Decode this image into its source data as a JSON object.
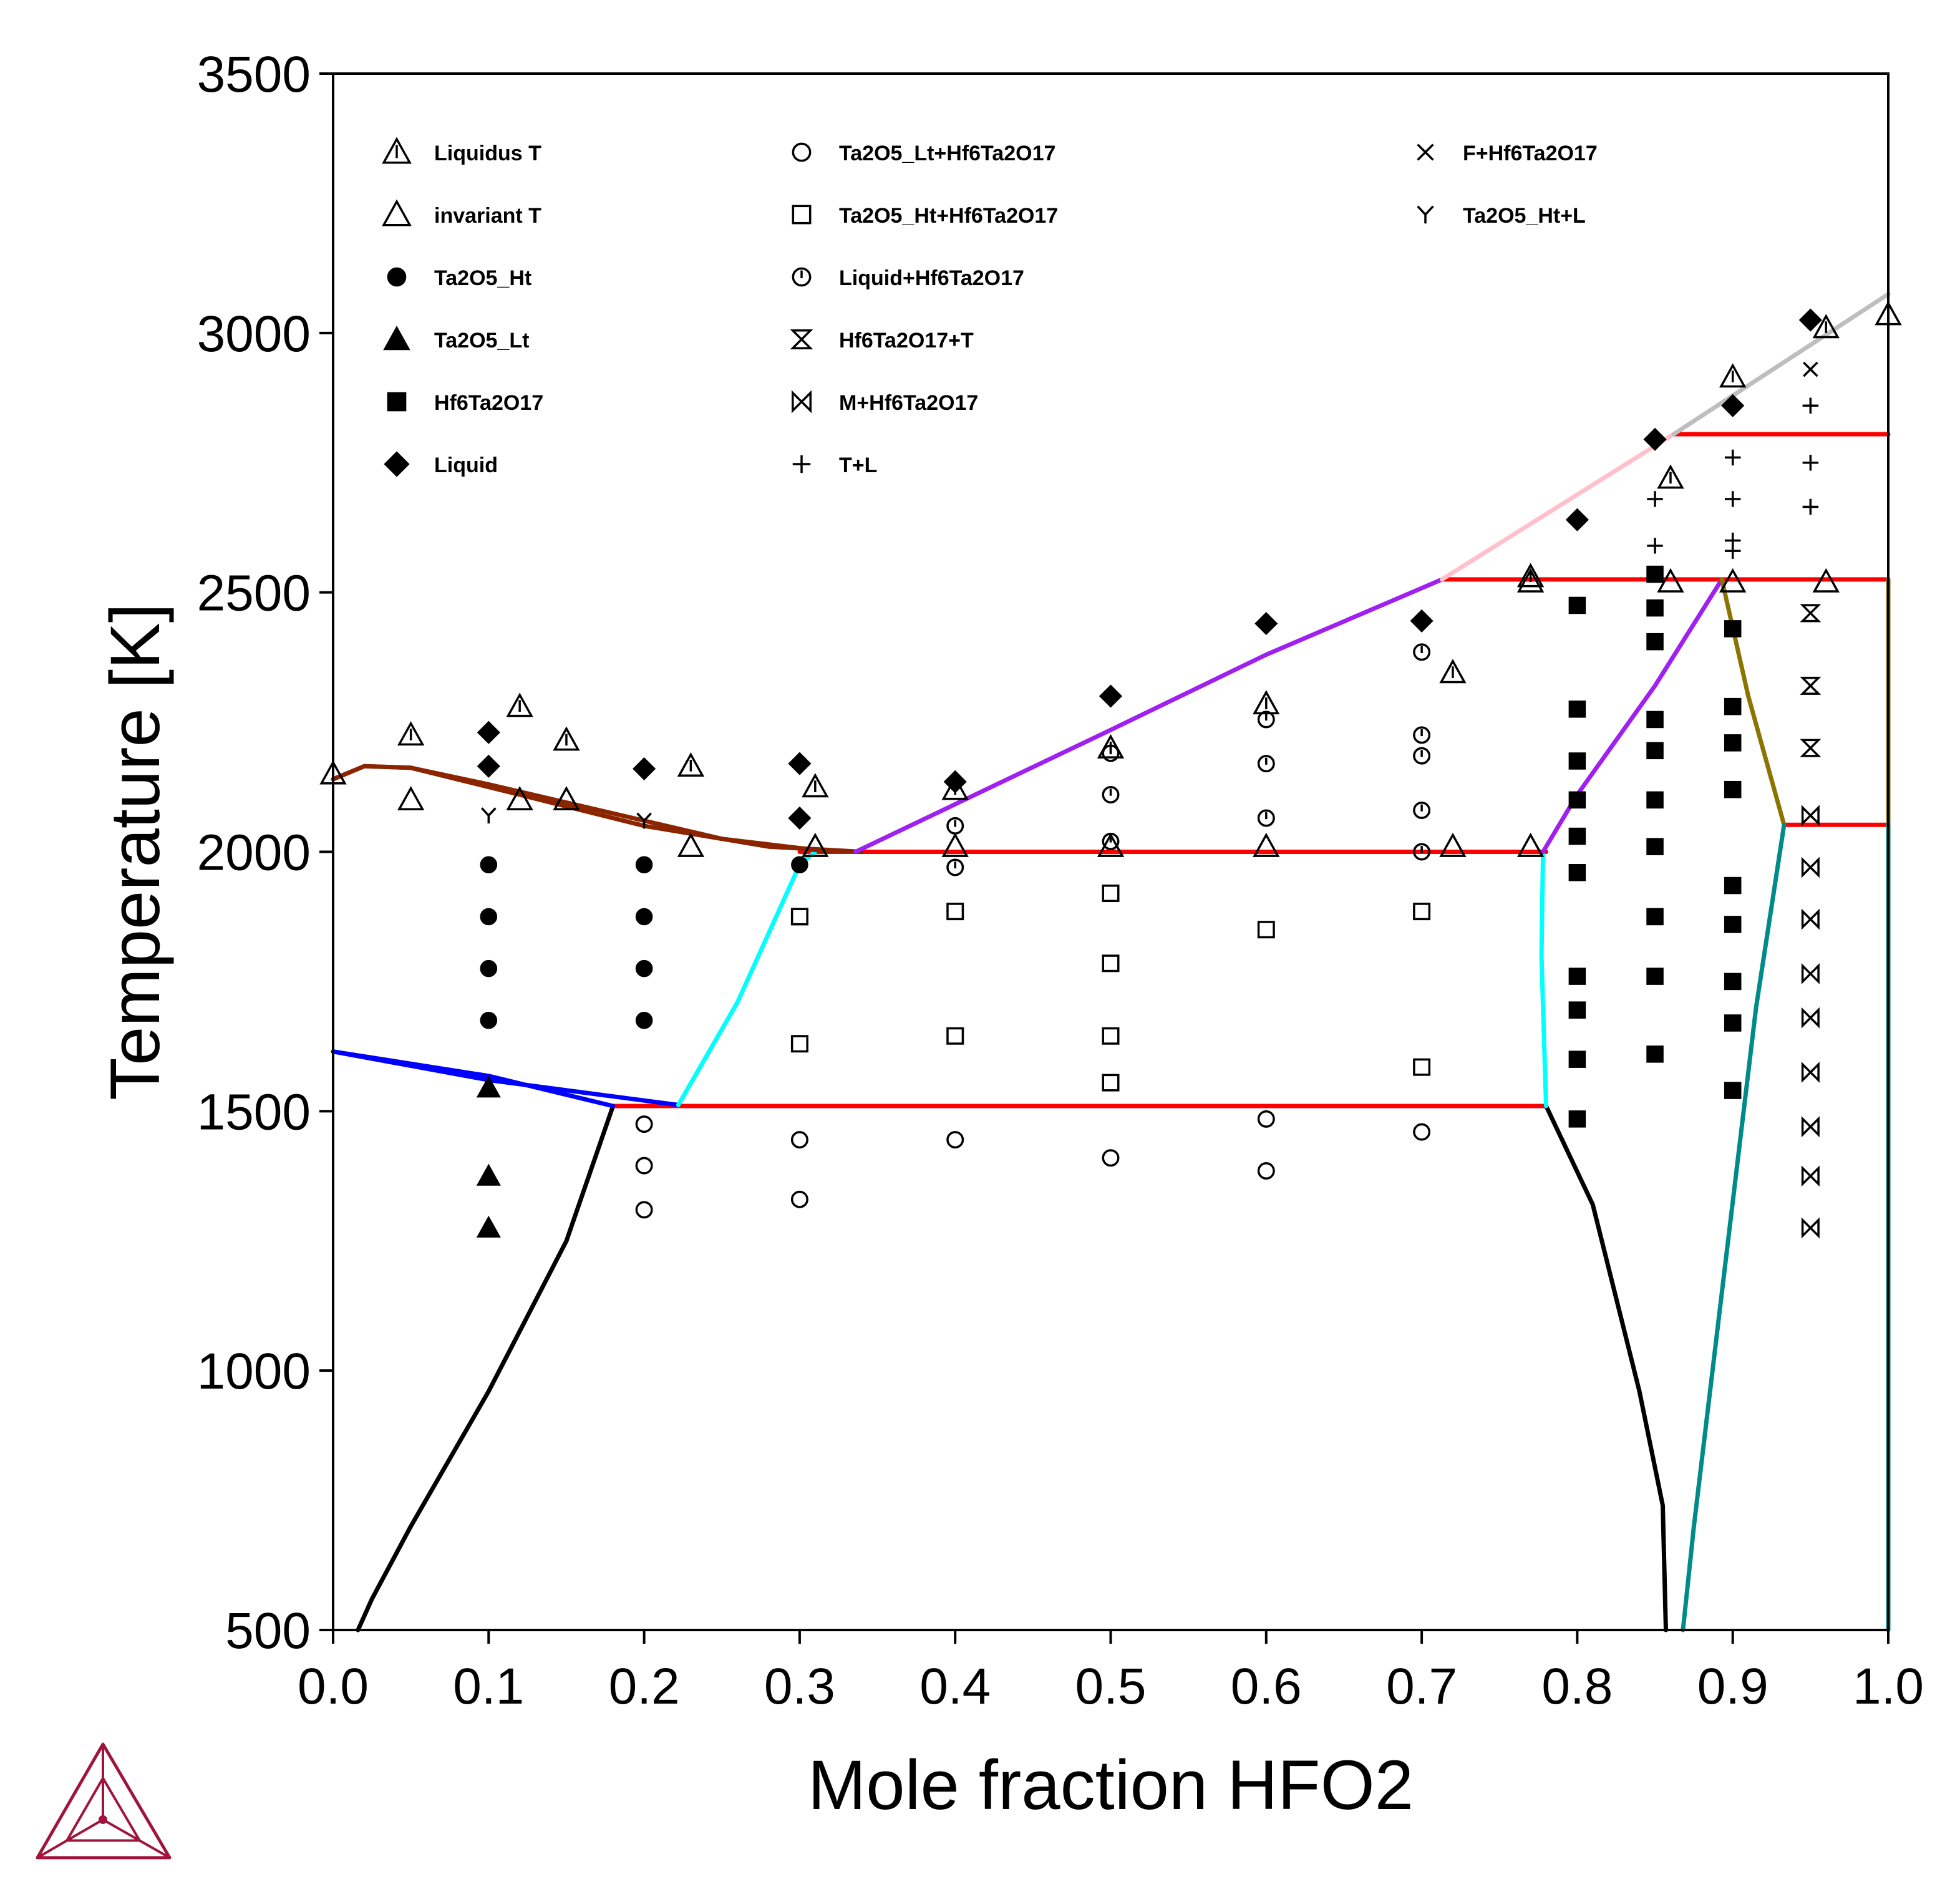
{
  "chart_data": {
    "type": "scatter",
    "title": "",
    "xlabel": "Mole fraction HFO2",
    "ylabel": "Temperature [K]",
    "xlim": [
      0.0,
      1.0
    ],
    "ylim": [
      500,
      3500
    ],
    "x_ticks": [
      "0.0",
      "0.1",
      "0.2",
      "0.3",
      "0.4",
      "0.5",
      "0.6",
      "0.7",
      "0.8",
      "0.9",
      "1.0"
    ],
    "y_ticks": [
      "500",
      "1000",
      "1500",
      "2000",
      "2500",
      "3000",
      "3500"
    ],
    "grid": false,
    "legend_position": "top-left inside, three columns",
    "markers": [
      {
        "name": "Liquidus T",
        "marker": "tri-bar",
        "points": [
          [
            0.0,
            2150
          ],
          [
            0.05,
            2225
          ],
          [
            0.12,
            2280
          ],
          [
            0.15,
            2215
          ],
          [
            0.23,
            2165
          ],
          [
            0.31,
            2125
          ],
          [
            0.4,
            2120
          ],
          [
            0.5,
            2200
          ],
          [
            0.6,
            2285
          ],
          [
            0.72,
            2345
          ],
          [
            0.77,
            2530
          ],
          [
            0.86,
            2720
          ],
          [
            0.9,
            2915
          ],
          [
            0.96,
            3010
          ]
        ]
      },
      {
        "name": "invariant T",
        "marker": "tri-open",
        "points": [
          [
            0.05,
            2100
          ],
          [
            0.12,
            2100
          ],
          [
            0.15,
            2100
          ],
          [
            0.23,
            2010
          ],
          [
            0.31,
            2010
          ],
          [
            0.4,
            2010
          ],
          [
            0.5,
            2010
          ],
          [
            0.6,
            2010
          ],
          [
            0.72,
            2010
          ],
          [
            0.77,
            2010
          ],
          [
            0.77,
            2520
          ],
          [
            0.86,
            2520
          ],
          [
            0.9,
            2520
          ],
          [
            0.96,
            2520
          ],
          [
            1.0,
            3035
          ]
        ]
      },
      {
        "name": "Ta2O5_Ht",
        "marker": "circle-filled",
        "points": [
          [
            0.1,
            1975
          ],
          [
            0.1,
            1875
          ],
          [
            0.1,
            1775
          ],
          [
            0.1,
            1675
          ],
          [
            0.2,
            1975
          ],
          [
            0.2,
            1875
          ],
          [
            0.2,
            1775
          ],
          [
            0.2,
            1675
          ],
          [
            0.3,
            1975
          ]
        ]
      },
      {
        "name": "Ta2O5_Lt",
        "marker": "tri-filled",
        "points": [
          [
            0.1,
            1545
          ],
          [
            0.1,
            1375
          ],
          [
            0.1,
            1275
          ]
        ]
      },
      {
        "name": "Hf6Ta2O17",
        "marker": "square-filled",
        "points": [
          [
            0.8,
            2475
          ],
          [
            0.8,
            2275
          ],
          [
            0.8,
            2175
          ],
          [
            0.8,
            2100
          ],
          [
            0.8,
            2030
          ],
          [
            0.8,
            1960
          ],
          [
            0.8,
            1760
          ],
          [
            0.8,
            1695
          ],
          [
            0.8,
            1600
          ],
          [
            0.8,
            1485
          ],
          [
            0.85,
            2535
          ],
          [
            0.85,
            2470
          ],
          [
            0.85,
            2405
          ],
          [
            0.85,
            2255
          ],
          [
            0.85,
            2195
          ],
          [
            0.85,
            2100
          ],
          [
            0.85,
            2010
          ],
          [
            0.85,
            1875
          ],
          [
            0.85,
            1760
          ],
          [
            0.85,
            1610
          ],
          [
            0.9,
            2430
          ],
          [
            0.9,
            2280
          ],
          [
            0.9,
            2210
          ],
          [
            0.9,
            2120
          ],
          [
            0.9,
            1935
          ],
          [
            0.9,
            1860
          ],
          [
            0.9,
            1750
          ],
          [
            0.9,
            1670
          ],
          [
            0.9,
            1540
          ]
        ]
      },
      {
        "name": "Liquid",
        "marker": "diamond-filled",
        "points": [
          [
            0.1,
            2230
          ],
          [
            0.1,
            2165
          ],
          [
            0.2,
            2160
          ],
          [
            0.3,
            2170
          ],
          [
            0.3,
            2065
          ],
          [
            0.4,
            2135
          ],
          [
            0.5,
            2300
          ],
          [
            0.6,
            2440
          ],
          [
            0.7,
            2445
          ],
          [
            0.8,
            2640
          ],
          [
            0.85,
            2795
          ],
          [
            0.9,
            2860
          ],
          [
            0.95,
            3025
          ]
        ]
      },
      {
        "name": "Ta2O5_Lt+Hf6Ta2O17",
        "marker": "circle-open",
        "points": [
          [
            0.2,
            1475
          ],
          [
            0.2,
            1395
          ],
          [
            0.2,
            1310
          ],
          [
            0.3,
            1445
          ],
          [
            0.3,
            1330
          ],
          [
            0.4,
            1445
          ],
          [
            0.5,
            1410
          ],
          [
            0.6,
            1485
          ],
          [
            0.6,
            1385
          ],
          [
            0.7,
            1460
          ]
        ]
      },
      {
        "name": "Ta2O5_Ht+Hf6Ta2O17",
        "marker": "square-open",
        "points": [
          [
            0.3,
            1875
          ],
          [
            0.3,
            1630
          ],
          [
            0.4,
            1885
          ],
          [
            0.4,
            1645
          ],
          [
            0.5,
            1920
          ],
          [
            0.5,
            1785
          ],
          [
            0.5,
            1645
          ],
          [
            0.5,
            1555
          ],
          [
            0.6,
            1850
          ],
          [
            0.7,
            1885
          ],
          [
            0.7,
            1585
          ]
        ]
      },
      {
        "name": "Liquid+Hf6Ta2O17",
        "marker": "circle-bar",
        "points": [
          [
            0.4,
            2050
          ],
          [
            0.4,
            1970
          ],
          [
            0.5,
            2190
          ],
          [
            0.5,
            2110
          ],
          [
            0.5,
            2020
          ],
          [
            0.6,
            2255
          ],
          [
            0.6,
            2170
          ],
          [
            0.6,
            2065
          ],
          [
            0.7,
            2385
          ],
          [
            0.7,
            2225
          ],
          [
            0.7,
            2185
          ],
          [
            0.7,
            2080
          ],
          [
            0.7,
            2000
          ]
        ]
      },
      {
        "name": "Hf6Ta2O17+T",
        "marker": "hourglass",
        "points": [
          [
            0.95,
            2460
          ],
          [
            0.95,
            2320
          ],
          [
            0.95,
            2200
          ]
        ]
      },
      {
        "name": "M+Hf6Ta2O17",
        "marker": "bowtie",
        "points": [
          [
            0.95,
            2070
          ],
          [
            0.95,
            1970
          ],
          [
            0.95,
            1870
          ],
          [
            0.95,
            1765
          ],
          [
            0.95,
            1680
          ],
          [
            0.95,
            1575
          ],
          [
            0.95,
            1470
          ],
          [
            0.95,
            1375
          ],
          [
            0.95,
            1275
          ]
        ]
      },
      {
        "name": "T+L",
        "marker": "plus",
        "points": [
          [
            0.85,
            2680
          ],
          [
            0.85,
            2590
          ],
          [
            0.9,
            2760
          ],
          [
            0.9,
            2680
          ],
          [
            0.9,
            2600
          ],
          [
            0.9,
            2580
          ],
          [
            0.95,
            2860
          ],
          [
            0.95,
            2750
          ],
          [
            0.95,
            2665
          ]
        ]
      },
      {
        "name": "F+Hf6Ta2O17",
        "marker": "cross",
        "points": [
          [
            0.95,
            2930
          ]
        ]
      },
      {
        "name": "Ta2O5_Ht+L",
        "marker": "y-shape",
        "points": [
          [
            0.1,
            2070
          ],
          [
            0.2,
            2060
          ]
        ]
      }
    ],
    "lines": [
      {
        "color": "#ff0000",
        "points": [
          [
            0.18,
            1510
          ],
          [
            0.78,
            1510
          ]
        ]
      },
      {
        "color": "#ff0000",
        "points": [
          [
            0.3,
            2000
          ],
          [
            0.78,
            2000
          ]
        ]
      },
      {
        "color": "#ff0000",
        "points": [
          [
            0.713,
            2525
          ],
          [
            1.0,
            2525
          ]
        ]
      },
      {
        "color": "#ff0000",
        "points": [
          [
            0.862,
            2805
          ],
          [
            1.0,
            2805
          ]
        ]
      },
      {
        "color": "#ff0000",
        "points": [
          [
            0.933,
            2052
          ],
          [
            1.0,
            2052
          ]
        ]
      },
      {
        "color": "#000000",
        "points": [
          [
            0.016,
            500
          ],
          [
            0.025,
            560
          ],
          [
            0.05,
            700
          ],
          [
            0.1,
            960
          ],
          [
            0.15,
            1250
          ],
          [
            0.18,
            1510
          ]
        ]
      },
      {
        "color": "#000000",
        "points": [
          [
            0.78,
            1510
          ],
          [
            0.81,
            1320
          ],
          [
            0.84,
            960
          ],
          [
            0.855,
            740
          ],
          [
            0.857,
            500
          ]
        ]
      },
      {
        "color": "#0000ff",
        "points": [
          [
            0.0,
            1615
          ],
          [
            0.1,
            1568
          ],
          [
            0.18,
            1510
          ]
        ]
      },
      {
        "color": "#0000ff",
        "points": [
          [
            0.0,
            1615
          ],
          [
            0.1,
            1560
          ],
          [
            0.222,
            1512
          ]
        ]
      },
      {
        "color": "#00ffff",
        "points": [
          [
            0.222,
            1512
          ],
          [
            0.26,
            1710
          ],
          [
            0.3,
            1975
          ],
          [
            0.31,
            2000
          ]
        ]
      },
      {
        "color": "#00ffff",
        "points": [
          [
            0.778,
            2000
          ],
          [
            0.777,
            1800
          ],
          [
            0.78,
            1510
          ]
        ]
      },
      {
        "color": "#8b2500",
        "points": [
          [
            0.0,
            2140
          ],
          [
            0.02,
            2165
          ],
          [
            0.05,
            2162
          ],
          [
            0.1,
            2130
          ],
          [
            0.2,
            2060
          ],
          [
            0.25,
            2025
          ],
          [
            0.32,
            2000
          ]
        ]
      },
      {
        "color": "#8b2500",
        "points": [
          [
            0.0,
            2140
          ],
          [
            0.02,
            2165
          ],
          [
            0.05,
            2162
          ],
          [
            0.12,
            2110
          ],
          [
            0.2,
            2050
          ],
          [
            0.28,
            2010
          ],
          [
            0.34,
            2000
          ]
        ]
      },
      {
        "color": "#a020f0",
        "points": [
          [
            0.336,
            2000
          ],
          [
            0.5,
            2235
          ],
          [
            0.6,
            2380
          ],
          [
            0.713,
            2525
          ]
        ]
      },
      {
        "color": "#a020f0",
        "points": [
          [
            0.778,
            2000
          ],
          [
            0.8,
            2110
          ],
          [
            0.85,
            2320
          ],
          [
            0.893,
            2525
          ]
        ]
      },
      {
        "color": "#ffc0cb",
        "points": [
          [
            0.713,
            2525
          ],
          [
            0.862,
            2805
          ]
        ]
      },
      {
        "color": "#bebebe",
        "points": [
          [
            0.862,
            2805
          ],
          [
            1.0,
            3075
          ]
        ]
      },
      {
        "color": "#8b7500",
        "points": [
          [
            0.893,
            2525
          ],
          [
            0.91,
            2300
          ],
          [
            0.933,
            2052
          ]
        ]
      },
      {
        "color": "#8b7500",
        "points": [
          [
            1.0,
            2525
          ],
          [
            1.0,
            2052
          ]
        ]
      },
      {
        "color": "#008b8b",
        "points": [
          [
            0.933,
            2052
          ],
          [
            0.915,
            1700
          ],
          [
            0.895,
            1200
          ],
          [
            0.875,
            700
          ],
          [
            0.868,
            500
          ]
        ]
      },
      {
        "color": "#008b8b",
        "points": [
          [
            1.0,
            2052
          ],
          [
            1.0,
            500
          ]
        ]
      }
    ]
  },
  "logo": {
    "name": "thermo-calc-logo",
    "color": "#a0143c"
  }
}
